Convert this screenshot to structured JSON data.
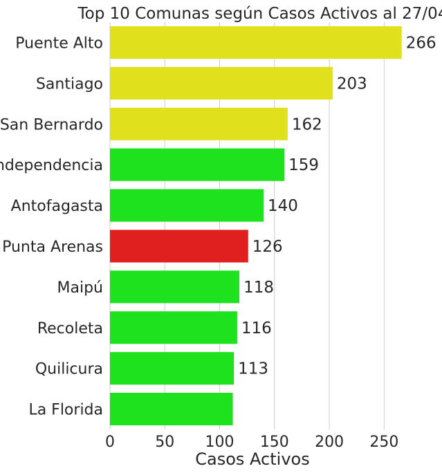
{
  "chart_data": {
    "type": "bar",
    "orientation": "horizontal",
    "title": "Top 10 Comunas según  Casos Activos al 27/04",
    "xlabel": "Casos Activos",
    "ylabel": "",
    "categories": [
      "Puente Alto",
      "Santiago",
      "San Bernardo",
      "Independencia",
      "Antofagasta",
      "Punta Arenas",
      "Maipú",
      "Recoleta",
      "Quilicura",
      "La Florida"
    ],
    "values": [
      266,
      203,
      162,
      159,
      140,
      126,
      118,
      116,
      113,
      112
    ],
    "value_labels": [
      "266",
      "203",
      "162",
      "159",
      "140",
      "126",
      "118",
      "116",
      "113",
      ""
    ],
    "bar_colors": [
      "#e0e01d",
      "#e0e01d",
      "#e0e01d",
      "#1fe21f",
      "#1fe21f",
      "#e01f1f",
      "#1fe21f",
      "#1fe21f",
      "#1fe21f",
      "#1fe21f"
    ],
    "xlim": [
      0,
      275
    ],
    "xticks": [
      0,
      50,
      100,
      150,
      200,
      250
    ],
    "xtick_labels": [
      "0",
      "50",
      "100",
      "150",
      "200",
      "250"
    ],
    "grid": "vertical"
  }
}
